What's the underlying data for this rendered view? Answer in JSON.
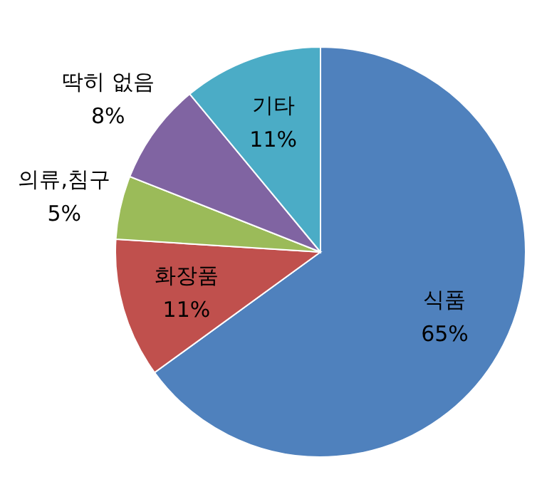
{
  "chart_data": {
    "type": "pie",
    "categories": [
      "식품",
      "화장품",
      "의류,침구",
      "딱히 없음",
      "기타"
    ],
    "values": [
      65,
      11,
      5,
      8,
      11
    ],
    "colors": [
      "#4f81bd",
      "#c0504d",
      "#9bbb59",
      "#8064a2",
      "#4bacc6"
    ],
    "value_labels": [
      "65%",
      "11%",
      "5%",
      "8%",
      "11%"
    ]
  }
}
